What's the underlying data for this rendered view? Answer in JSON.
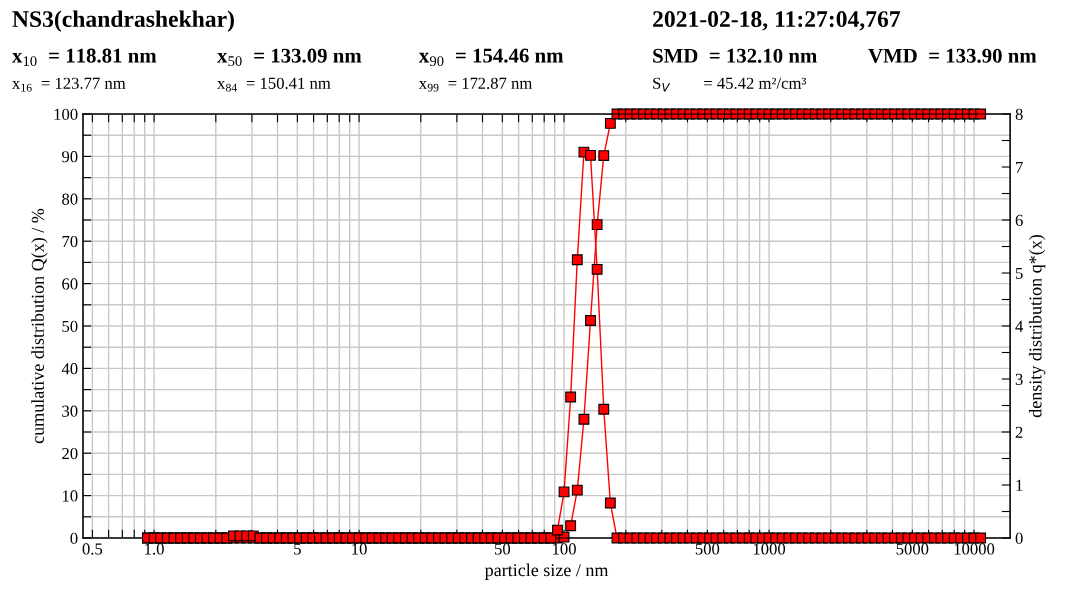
{
  "chart_data": {
    "type": "line",
    "title": "NS3(chandrashekhar)",
    "subtitle": "2021-02-18, 11:27:04,767",
    "annotations": [
      "x$_{10}$  = 118.81 nm",
      "x$_{50}$  = 133.09 nm",
      "x$_{90}$  = 154.46 nm",
      "SMD  = 132.10 nm",
      "VMD  = 133.90 nm",
      "x$_{16}$  = 123.77 nm",
      "x$_{84}$  = 150.41 nm",
      "x$_{99}$  = 172.87 nm",
      "S$_{V}$        = 45.42 m²/cm³"
    ],
    "xlabel": "particle size / nm",
    "ylabel": "cumulative distribution Q(x) / %",
    "y2label": "density distribution q*(x)",
    "log": "x",
    "x": [
      0.928,
      1,
      1.077,
      1.16,
      1.25,
      1.346,
      1.45,
      1.562,
      1.682,
      1.812,
      1.951,
      2.102,
      2.264,
      2.438,
      2.626,
      2.829,
      3.047,
      3.282,
      3.535,
      3.808,
      4.101,
      4.418,
      4.758,
      5.125,
      5.521,
      5.946,
      6.405,
      6.899,
      7.431,
      8.004,
      8.621,
      9.286,
      10,
      10.77,
      11.6,
      12.5,
      13.46,
      14.5,
      15.62,
      16.82,
      18.12,
      19.51,
      21.02,
      22.64,
      24.38,
      26.26,
      28.29,
      30.47,
      32.82,
      35.35,
      38.08,
      41.01,
      44.18,
      47.58,
      51.25,
      55.21,
      59.46,
      64.05,
      68.99,
      74.31,
      80.04,
      86.21,
      92.86,
      100,
      107.7,
      116,
      125,
      134.6,
      145,
      156.2,
      168.2,
      181.2,
      195.1,
      210.2,
      226.4,
      243.8,
      262.6,
      282.9,
      304.7,
      328.2,
      353.5,
      380.8,
      410.1,
      441.8,
      475.8,
      512.5,
      552.1,
      594.6,
      640.5,
      689.9,
      743.1,
      800.4,
      862.1,
      928.6,
      1000,
      1077,
      1160,
      1250,
      1346,
      1450,
      1562,
      1682,
      1812,
      1951,
      2102,
      2264,
      2438,
      2626,
      2829,
      3047,
      3282,
      3535,
      3808,
      4101,
      4418,
      4758,
      5125,
      5521,
      5946,
      6405,
      6899,
      7431,
      8004,
      8621,
      9286,
      10000,
      10771
    ],
    "series": [
      {
        "color": "#ff0000",
        "values": [
          0,
          0,
          0,
          0,
          0,
          0,
          0,
          0,
          0,
          0,
          0,
          0,
          0,
          0,
          0,
          0,
          0,
          0,
          0,
          0,
          0,
          0,
          0,
          0,
          0,
          0,
          0,
          0,
          0,
          0,
          0,
          0,
          0,
          0,
          0,
          0,
          0,
          0,
          0,
          0,
          0,
          0,
          0,
          0,
          0,
          0,
          0,
          0,
          0,
          0,
          0,
          0,
          0,
          0,
          0,
          0,
          0,
          0,
          0,
          0,
          0,
          0,
          0,
          0.2,
          2.9,
          11.3,
          28,
          51.3,
          73.9,
          90.2,
          97.8,
          100,
          100,
          100,
          100,
          100,
          100,
          100,
          100,
          100,
          100,
          100,
          100,
          100,
          100,
          100,
          100,
          100,
          100,
          100,
          100,
          100,
          100,
          100,
          100,
          100,
          100,
          100,
          100,
          100,
          100,
          100,
          100,
          100,
          100,
          100,
          100,
          100,
          100,
          100,
          100,
          100,
          100,
          100,
          100,
          100,
          100,
          100,
          100,
          100,
          100,
          100,
          100,
          100,
          100,
          100,
          100
        ]
      },
      {
        "color": "#ff0000",
        "axis": "y2",
        "values": [
          0,
          0,
          0,
          0,
          0,
          0,
          0,
          0,
          0,
          0,
          0,
          0,
          0,
          0.04,
          0.04,
          0.04,
          0.04,
          0,
          0,
          0,
          0,
          0,
          0,
          0,
          0,
          0,
          0,
          0,
          0,
          0,
          0,
          0,
          0,
          0,
          0,
          0,
          0,
          0,
          0,
          0,
          0,
          0,
          0,
          0,
          0,
          0,
          0,
          0,
          0,
          0,
          0,
          0,
          0,
          0,
          0,
          0,
          0,
          0,
          0,
          0,
          0,
          0,
          0.15,
          0.87,
          2.66,
          5.25,
          7.28,
          7.22,
          5.07,
          2.43,
          0.66,
          0,
          0,
          0,
          0,
          0,
          0,
          0,
          0,
          0,
          0,
          0,
          0,
          0,
          0,
          0,
          0,
          0,
          0,
          0,
          0,
          0,
          0,
          0,
          0,
          0,
          0,
          0,
          0,
          0,
          0,
          0,
          0,
          0,
          0,
          0,
          0,
          0,
          0,
          0,
          0,
          0,
          0,
          0,
          0,
          0,
          0,
          0,
          0,
          0,
          0,
          0,
          0,
          0,
          0,
          0,
          0
        ]
      }
    ],
    "marker": "square",
    "line_style": "solid",
    "grid": true,
    "legend": false,
    "xlim": [
      0.45,
      15000
    ],
    "xticks": [
      {
        "value": 0.5,
        "label": "0.5"
      },
      {
        "value": 0.6,
        "label": null
      },
      {
        "value": 0.7,
        "label": null
      },
      {
        "value": 0.8,
        "label": null
      },
      {
        "value": 0.9,
        "label": null
      },
      {
        "value": 1,
        "label": "1.0"
      },
      {
        "value": 2,
        "label": null
      },
      {
        "value": 3,
        "label": null
      },
      {
        "value": 4,
        "label": null
      },
      5,
      {
        "value": 6,
        "label": null
      },
      {
        "value": 7,
        "label": null
      },
      {
        "value": 8,
        "label": null
      },
      {
        "value": 9,
        "label": null
      },
      10,
      {
        "value": 20,
        "label": null
      },
      {
        "value": 30,
        "label": null
      },
      {
        "value": 40,
        "label": null
      },
      50,
      {
        "value": 60,
        "label": null
      },
      {
        "value": 70,
        "label": null
      },
      {
        "value": 80,
        "label": null
      },
      {
        "value": 90,
        "label": null
      },
      100,
      {
        "value": 200,
        "label": null
      },
      {
        "value": 300,
        "label": null
      },
      {
        "value": 400,
        "label": null
      },
      500,
      {
        "value": 600,
        "label": null
      },
      {
        "value": 700,
        "label": null
      },
      {
        "value": 800,
        "label": null
      },
      {
        "value": 900,
        "label": null
      },
      1000,
      {
        "value": 2000,
        "label": null
      },
      {
        "value": 3000,
        "label": null
      },
      {
        "value": 4000,
        "label": null
      },
      5000,
      {
        "value": 6000,
        "label": null
      },
      {
        "value": 7000,
        "label": null
      },
      {
        "value": 8000,
        "label": null
      },
      {
        "value": 9000,
        "label": null
      },
      10000
    ],
    "ylim": [
      0,
      100
    ],
    "yticks": [
      0,
      {
        "value": 5,
        "label": null
      },
      10,
      {
        "value": 15,
        "label": null
      },
      20,
      {
        "value": 25,
        "label": null
      },
      30,
      {
        "value": 35,
        "label": null
      },
      40,
      {
        "value": 45,
        "label": null
      },
      50,
      {
        "value": 55,
        "label": null
      },
      60,
      {
        "value": 65,
        "label": null
      },
      70,
      {
        "value": 75,
        "label": null
      },
      80,
      {
        "value": 85,
        "label": null
      },
      90,
      {
        "value": 95,
        "label": null
      },
      100
    ],
    "y2lim": [
      0,
      8
    ],
    "y2ticks": [
      0,
      {
        "value": 0.5,
        "label": null
      },
      1,
      {
        "value": 1.5,
        "label": null
      },
      2,
      {
        "value": 2.5,
        "label": null
      },
      3,
      {
        "value": 3.5,
        "label": null
      },
      4,
      {
        "value": 4.5,
        "label": null
      },
      5,
      {
        "value": 5.5,
        "label": null
      },
      6,
      {
        "value": 6.5,
        "label": null
      },
      7,
      {
        "value": 7.5,
        "label": null
      },
      8
    ]
  }
}
